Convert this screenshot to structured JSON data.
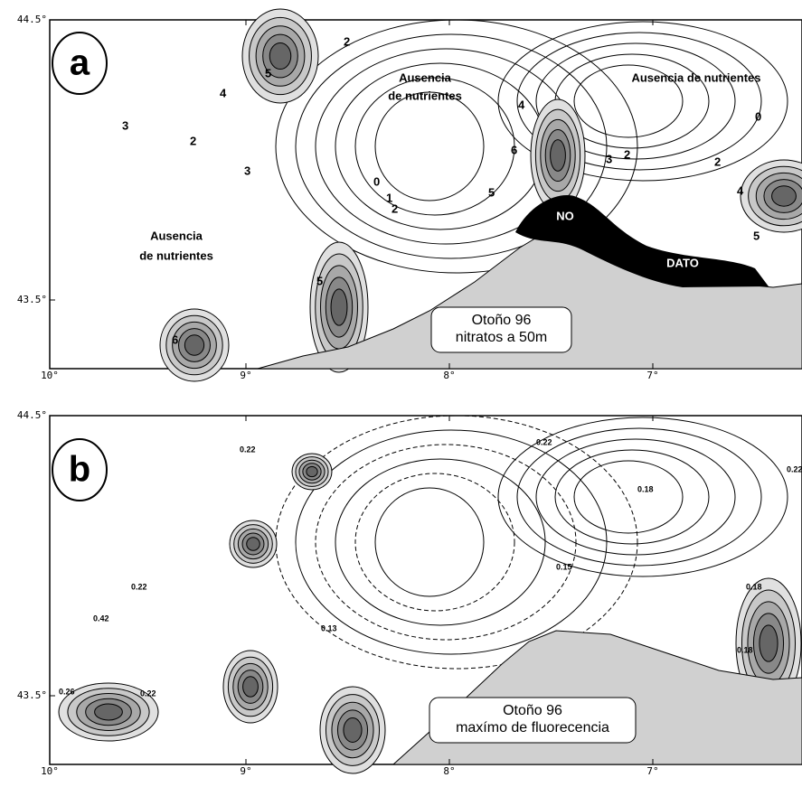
{
  "panels": [
    {
      "label": "a",
      "x_ticks": [
        "10°",
        "9°",
        "8°",
        "7°"
      ],
      "y_ticks": [
        "44.5°",
        "43.5°"
      ],
      "legend": [
        "Otoño 96",
        "nitratos a 50m"
      ],
      "annotations": [
        [
          "Ausencia",
          "de nutrientes"
        ],
        [
          "Ausencia de nutrientes"
        ],
        [
          "Ausencia",
          "de nutrientes"
        ],
        [
          "NO"
        ],
        [
          "DATO"
        ]
      ],
      "contour_labels": [
        "5",
        "4",
        "3",
        "2",
        "2",
        "3",
        "1",
        "0",
        "2",
        "6",
        "4",
        "5",
        "2",
        "3",
        "0",
        "5",
        "4",
        "6",
        "5",
        "2"
      ]
    },
    {
      "label": "b",
      "x_ticks": [
        "10°",
        "9°",
        "8°",
        "7°"
      ],
      "y_ticks": [
        "44.5°",
        "43.5°"
      ],
      "legend": [
        "Otoño 96",
        "maxímo de fluorecencia"
      ],
      "annotations": [],
      "contour_labels": [
        "0.22",
        "0.22",
        "0.18",
        "0.22",
        "0.15",
        "0.13",
        "0.18",
        "0.42",
        "0.26",
        "0.22",
        "0.18",
        "0.22"
      ]
    }
  ]
}
